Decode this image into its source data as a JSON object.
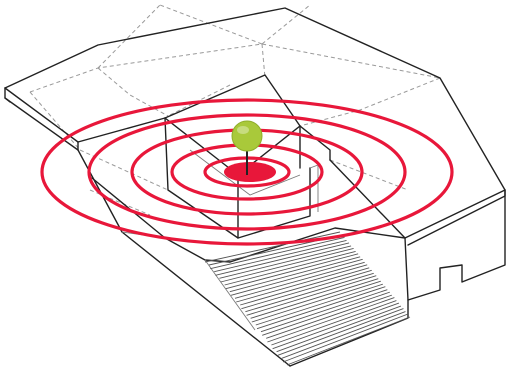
{
  "diagram": {
    "rings": {
      "count": 6,
      "color": "#e8173a"
    },
    "source_color": "#e8173a",
    "listener_color": "#a9c93a",
    "line_color": "#222222",
    "hidden_line_color": "#9a9a9a",
    "background": "#ffffff"
  }
}
